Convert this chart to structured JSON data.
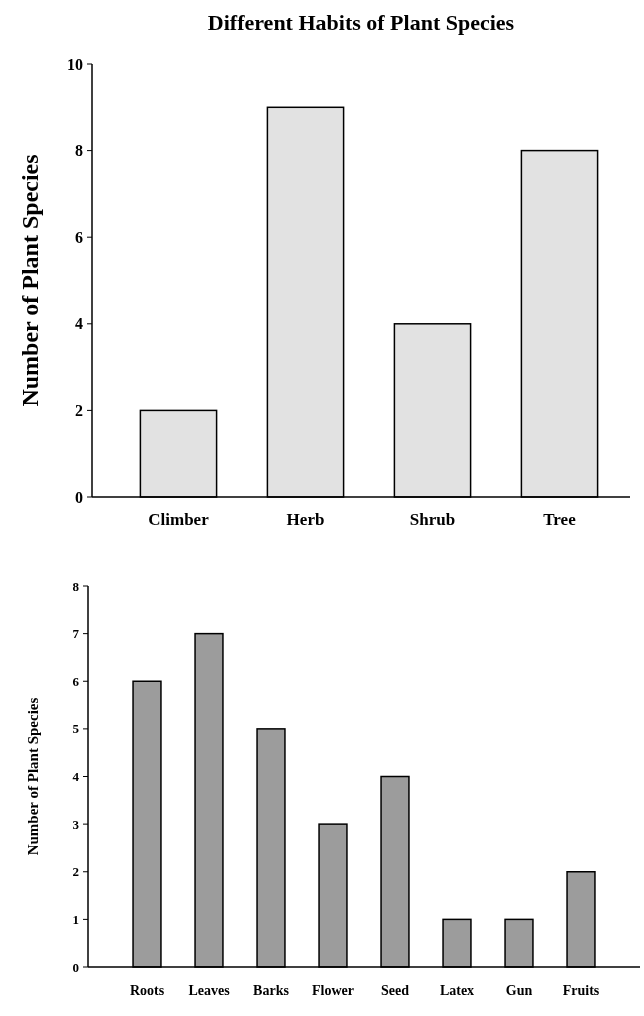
{
  "chart_data": [
    {
      "type": "bar",
      "title": "Different Habits of Plant Species",
      "ylabel": "Number of Plant Species",
      "categories": [
        "Climber",
        "Herb",
        "Shrub",
        "Tree"
      ],
      "values": [
        2,
        9,
        4,
        8
      ],
      "color": "#e2e2e2",
      "ylim": [
        0,
        10
      ],
      "yticks": [
        0,
        2,
        4,
        6,
        8,
        10
      ]
    },
    {
      "type": "bar",
      "ylabel": "Number of Plant Species",
      "categories": [
        "Roots",
        "Leaves",
        "Barks",
        "Flower",
        "Seed",
        "Latex",
        "Gun",
        "Fruits"
      ],
      "values": [
        6,
        7,
        5,
        3,
        4,
        1,
        1,
        2
      ],
      "color": "#9c9c9c",
      "ylim": [
        0,
        8
      ],
      "yticks": [
        0,
        1,
        2,
        3,
        4,
        5,
        6,
        7,
        8
      ]
    }
  ]
}
